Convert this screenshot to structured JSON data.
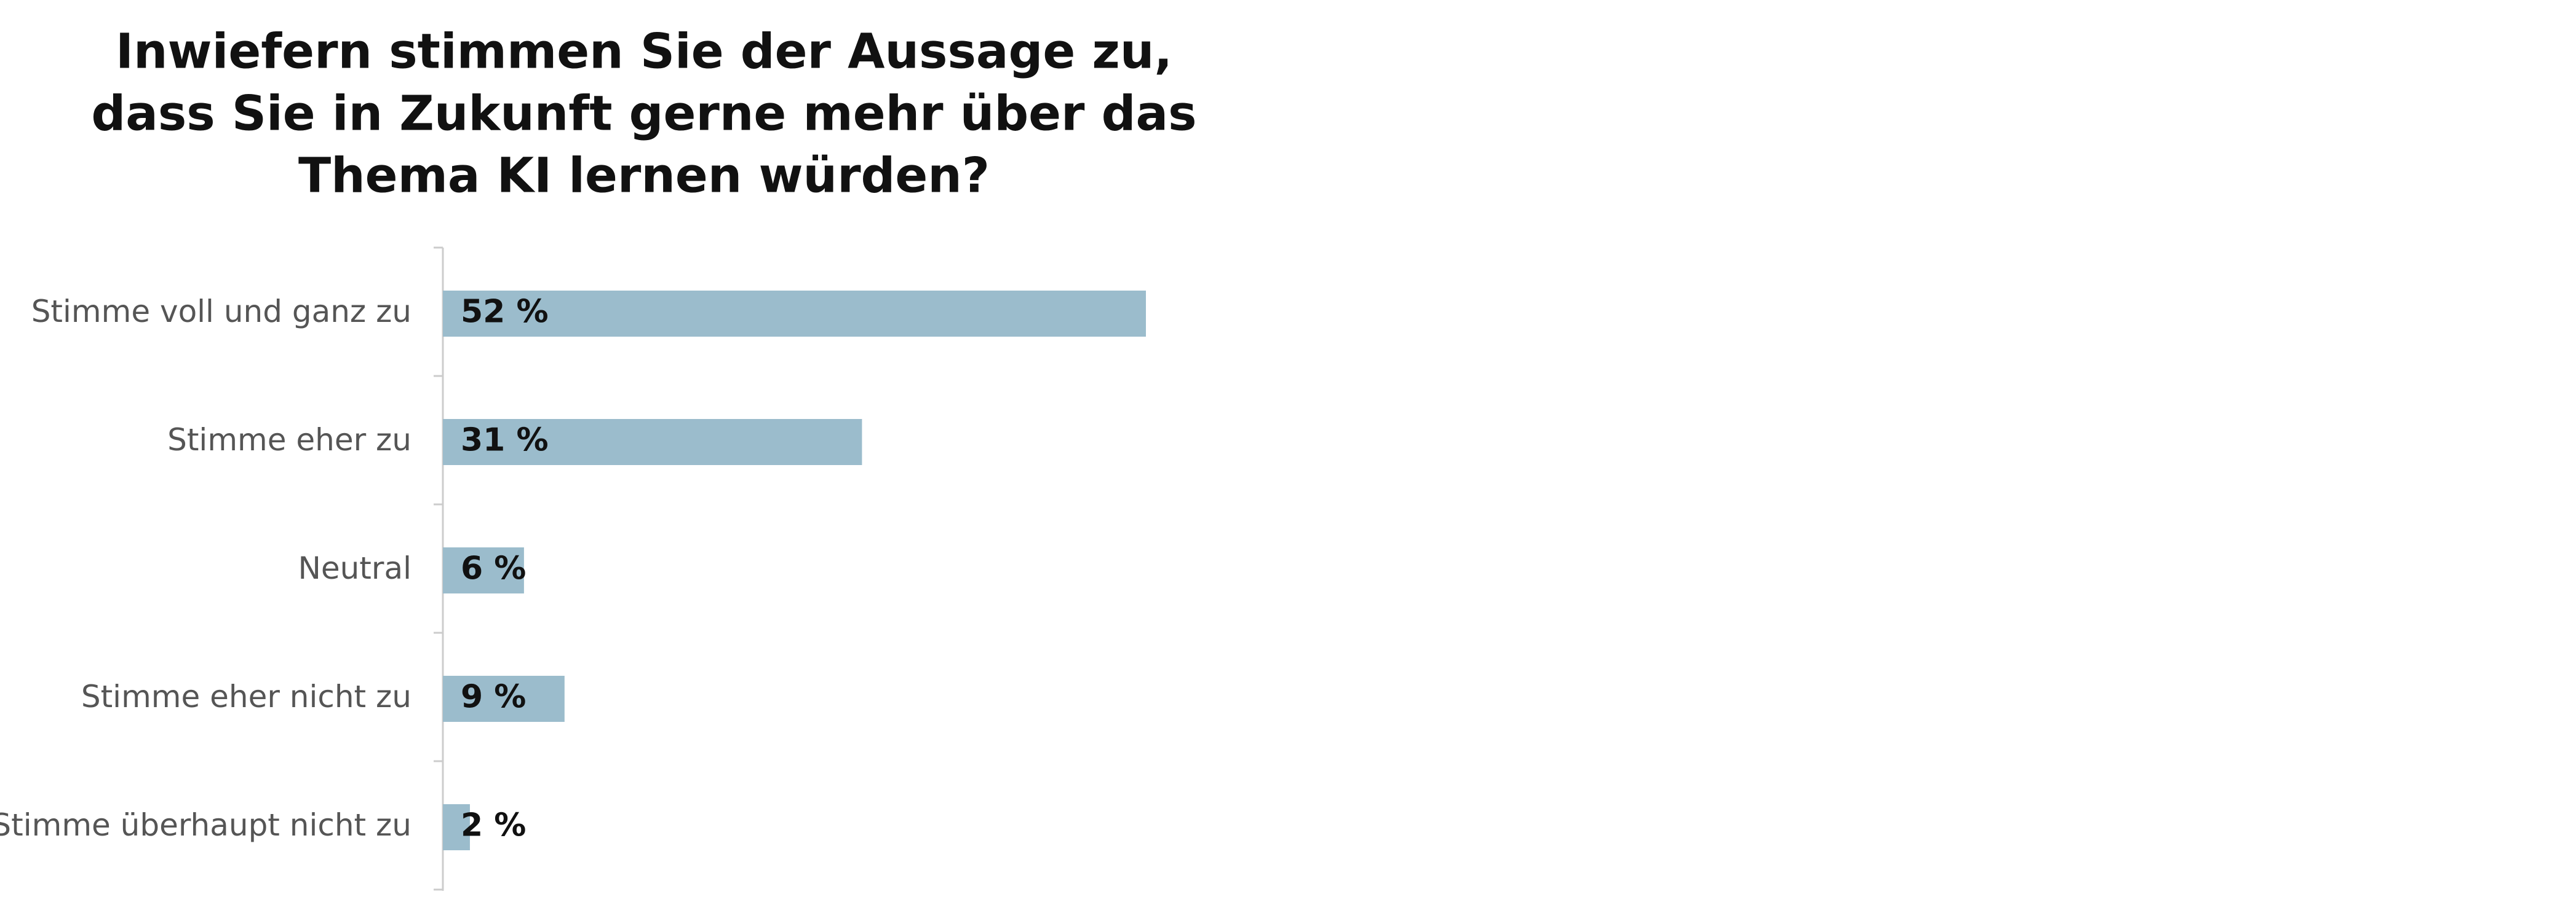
{
  "chart_data": {
    "type": "hbar",
    "title": [
      "Inwiefern stimmen Sie der Aussage zu,",
      "dass Sie in Zukunft gerne mehr über das",
      "Thema KI lernen würden?"
    ],
    "categories": [
      "Stimme voll und ganz zu",
      "Stimme eher zu",
      "Neutral",
      "Stimme eher nicht zu",
      "Stimme überhaupt nicht zu"
    ],
    "values": [
      52,
      31,
      6,
      9,
      2
    ],
    "value_labels": [
      "52 %",
      "31 %",
      "6 %",
      "9 %",
      "2 %"
    ],
    "color": "#9bbccc"
  }
}
